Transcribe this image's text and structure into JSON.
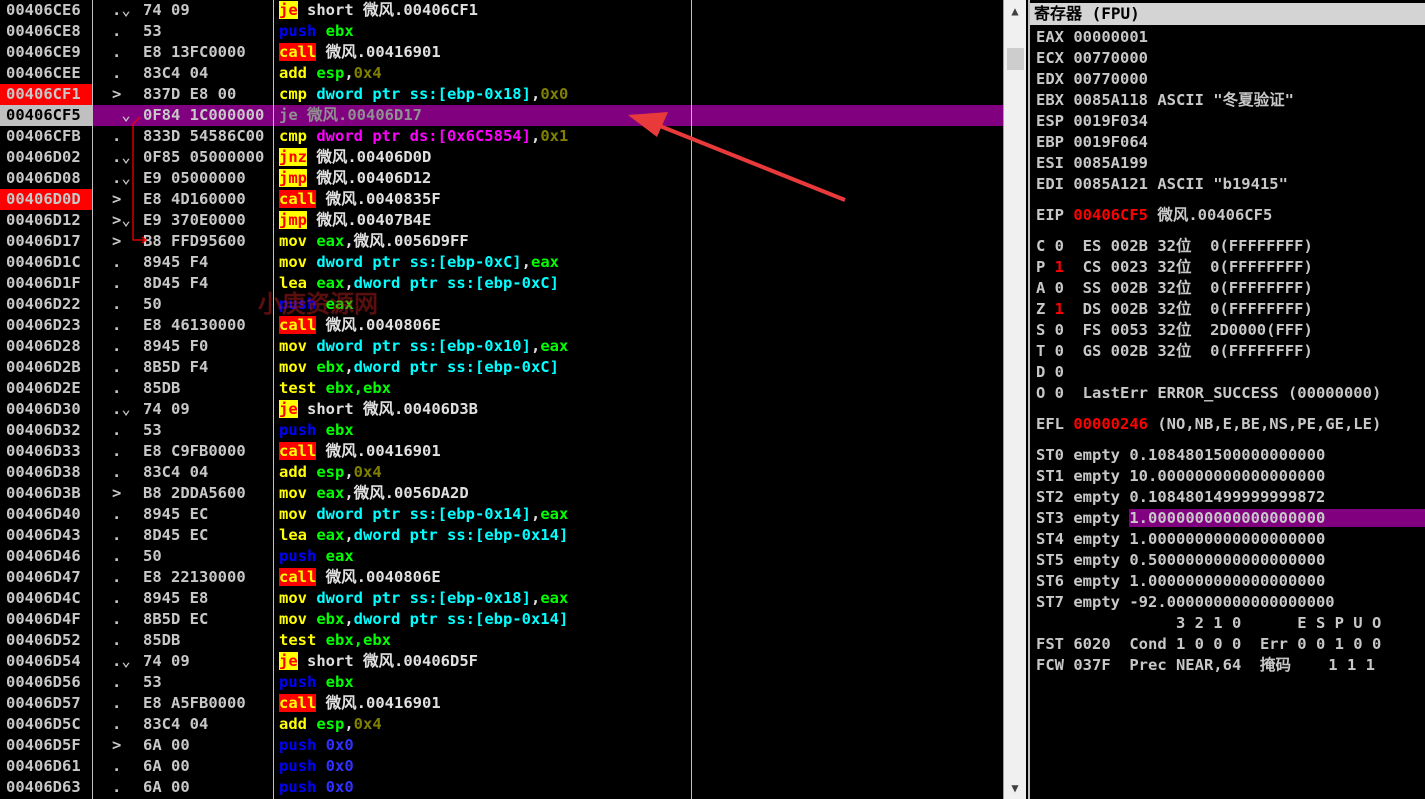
{
  "disasm": {
    "rows": [
      {
        "addr": "00406CE6",
        "mark": ".⌄",
        "hex": "74 09",
        "dis": [
          [
            "jx",
            "je"
          ],
          [
            "tx",
            " short 微风.00406CF1"
          ]
        ]
      },
      {
        "addr": "00406CE8",
        "mark": ".",
        "hex": "53",
        "dis": [
          [
            "ps",
            "push "
          ],
          [
            "rg",
            "ebx"
          ]
        ]
      },
      {
        "addr": "00406CE9",
        "mark": ".",
        "hex": "E8 13FC0000",
        "dis": [
          [
            "cl",
            "call"
          ],
          [
            "tx",
            " 微风.00416901"
          ]
        ]
      },
      {
        "addr": "00406CEE",
        "mark": ".",
        "hex": "83C4 04",
        "dis": [
          [
            "mn",
            "add "
          ],
          [
            "rg",
            "esp"
          ],
          [
            "tx",
            ","
          ],
          [
            "im",
            "0x4"
          ]
        ]
      },
      {
        "addr": "00406CF1",
        "addr_style": "red",
        "mark": ">",
        "hex": "837D E8 00",
        "dis": [
          [
            "mn",
            "cmp "
          ],
          [
            "mm",
            "dword ptr ss:[ebp-0x18]"
          ],
          [
            "tx",
            ","
          ],
          [
            "im",
            "0x0"
          ]
        ]
      },
      {
        "addr": "00406CF5",
        "addr_style": "gray",
        "selected": true,
        "mark": " ⌄",
        "hex": "0F84 1C000000",
        "dis": [
          [
            "gr",
            "je 微风.00406D17"
          ]
        ]
      },
      {
        "addr": "00406CFB",
        "mark": ".",
        "hex": "833D 54586C00",
        "dis": [
          [
            "mn",
            "cmp "
          ],
          [
            "md",
            "dword ptr ds:[0x6C5854]"
          ],
          [
            "tx",
            ","
          ],
          [
            "im",
            "0x1"
          ]
        ]
      },
      {
        "addr": "00406D02",
        "mark": ".⌄",
        "hex": "0F85 05000000",
        "dis": [
          [
            "jx",
            "jnz"
          ],
          [
            "tx",
            " 微风.00406D0D"
          ]
        ]
      },
      {
        "addr": "00406D08",
        "mark": ".⌄",
        "hex": "E9 05000000",
        "dis": [
          [
            "jx",
            "jmp"
          ],
          [
            "tx",
            " 微风.00406D12"
          ]
        ]
      },
      {
        "addr": "00406D0D",
        "addr_style": "red",
        "mark": ">",
        "hex": "E8 4D160000",
        "dis": [
          [
            "cl",
            "call"
          ],
          [
            "tx",
            " 微风.0040835F"
          ]
        ]
      },
      {
        "addr": "00406D12",
        "mark": ">⌄",
        "hex": "E9 370E0000",
        "dis": [
          [
            "jx",
            "jmp"
          ],
          [
            "tx",
            " 微风.00407B4E"
          ]
        ]
      },
      {
        "addr": "00406D17",
        "mark": ">",
        "hex": "B8 FFD95600",
        "dis": [
          [
            "mn",
            "mov "
          ],
          [
            "rg",
            "eax"
          ],
          [
            "tx",
            ",微风.0056D9FF"
          ]
        ]
      },
      {
        "addr": "00406D1C",
        "mark": ".",
        "hex": "8945 F4",
        "dis": [
          [
            "mn",
            "mov "
          ],
          [
            "mm",
            "dword ptr ss:[ebp-0xC]"
          ],
          [
            "tx",
            ","
          ],
          [
            "rg",
            "eax"
          ]
        ]
      },
      {
        "addr": "00406D1F",
        "mark": ".",
        "hex": "8D45 F4",
        "dis": [
          [
            "mn",
            "lea "
          ],
          [
            "rg",
            "eax"
          ],
          [
            "tx",
            ","
          ],
          [
            "mm",
            "dword ptr ss:[ebp-0xC]"
          ]
        ]
      },
      {
        "addr": "00406D22",
        "mark": ".",
        "hex": "50",
        "dis": [
          [
            "ps",
            "push "
          ],
          [
            "rg",
            "eax"
          ]
        ]
      },
      {
        "addr": "00406D23",
        "mark": ".",
        "hex": "E8 46130000",
        "dis": [
          [
            "cl",
            "call"
          ],
          [
            "tx",
            " 微风.0040806E"
          ]
        ]
      },
      {
        "addr": "00406D28",
        "mark": ".",
        "hex": "8945 F0",
        "dis": [
          [
            "mn",
            "mov "
          ],
          [
            "mm",
            "dword ptr ss:[ebp-0x10]"
          ],
          [
            "tx",
            ","
          ],
          [
            "rg",
            "eax"
          ]
        ]
      },
      {
        "addr": "00406D2B",
        "mark": ".",
        "hex": "8B5D F4",
        "dis": [
          [
            "mn",
            "mov "
          ],
          [
            "rg",
            "ebx"
          ],
          [
            "tx",
            ","
          ],
          [
            "mm",
            "dword ptr ss:[ebp-0xC]"
          ]
        ]
      },
      {
        "addr": "00406D2E",
        "mark": ".",
        "hex": "85DB",
        "dis": [
          [
            "mn",
            "test "
          ],
          [
            "rg",
            "ebx,ebx"
          ]
        ]
      },
      {
        "addr": "00406D30",
        "mark": ".⌄",
        "hex": "74 09",
        "dis": [
          [
            "jx",
            "je"
          ],
          [
            "tx",
            " short 微风.00406D3B"
          ]
        ]
      },
      {
        "addr": "00406D32",
        "mark": ".",
        "hex": "53",
        "dis": [
          [
            "ps",
            "push "
          ],
          [
            "rg",
            "ebx"
          ]
        ]
      },
      {
        "addr": "00406D33",
        "mark": ".",
        "hex": "E8 C9FB0000",
        "dis": [
          [
            "cl",
            "call"
          ],
          [
            "tx",
            " 微风.00416901"
          ]
        ]
      },
      {
        "addr": "00406D38",
        "mark": ".",
        "hex": "83C4 04",
        "dis": [
          [
            "mn",
            "add "
          ],
          [
            "rg",
            "esp"
          ],
          [
            "tx",
            ","
          ],
          [
            "im",
            "0x4"
          ]
        ]
      },
      {
        "addr": "00406D3B",
        "mark": ">",
        "hex": "B8 2DDA5600",
        "dis": [
          [
            "mn",
            "mov "
          ],
          [
            "rg",
            "eax"
          ],
          [
            "tx",
            ",微风.0056DA2D"
          ]
        ]
      },
      {
        "addr": "00406D40",
        "mark": ".",
        "hex": "8945 EC",
        "dis": [
          [
            "mn",
            "mov "
          ],
          [
            "mm",
            "dword ptr ss:[ebp-0x14]"
          ],
          [
            "tx",
            ","
          ],
          [
            "rg",
            "eax"
          ]
        ]
      },
      {
        "addr": "00406D43",
        "mark": ".",
        "hex": "8D45 EC",
        "dis": [
          [
            "mn",
            "lea "
          ],
          [
            "rg",
            "eax"
          ],
          [
            "tx",
            ","
          ],
          [
            "mm",
            "dword ptr ss:[ebp-0x14]"
          ]
        ]
      },
      {
        "addr": "00406D46",
        "mark": ".",
        "hex": "50",
        "dis": [
          [
            "ps",
            "push "
          ],
          [
            "rg",
            "eax"
          ]
        ]
      },
      {
        "addr": "00406D47",
        "mark": ".",
        "hex": "E8 22130000",
        "dis": [
          [
            "cl",
            "call"
          ],
          [
            "tx",
            " 微风.0040806E"
          ]
        ]
      },
      {
        "addr": "00406D4C",
        "mark": ".",
        "hex": "8945 E8",
        "dis": [
          [
            "mn",
            "mov "
          ],
          [
            "mm",
            "dword ptr ss:[ebp-0x18]"
          ],
          [
            "tx",
            ","
          ],
          [
            "rg",
            "eax"
          ]
        ]
      },
      {
        "addr": "00406D4F",
        "mark": ".",
        "hex": "8B5D EC",
        "dis": [
          [
            "mn",
            "mov "
          ],
          [
            "rg",
            "ebx"
          ],
          [
            "tx",
            ","
          ],
          [
            "mm",
            "dword ptr ss:[ebp-0x14]"
          ]
        ]
      },
      {
        "addr": "00406D52",
        "mark": ".",
        "hex": "85DB",
        "dis": [
          [
            "mn",
            "test "
          ],
          [
            "rg",
            "ebx,ebx"
          ]
        ]
      },
      {
        "addr": "00406D54",
        "mark": ".⌄",
        "hex": "74 09",
        "dis": [
          [
            "jx",
            "je"
          ],
          [
            "tx",
            " short 微风.00406D5F"
          ]
        ]
      },
      {
        "addr": "00406D56",
        "mark": ".",
        "hex": "53",
        "dis": [
          [
            "ps",
            "push "
          ],
          [
            "rg",
            "ebx"
          ]
        ]
      },
      {
        "addr": "00406D57",
        "mark": ".",
        "hex": "E8 A5FB0000",
        "dis": [
          [
            "cl",
            "call"
          ],
          [
            "tx",
            " 微风.00416901"
          ]
        ]
      },
      {
        "addr": "00406D5C",
        "mark": ".",
        "hex": "83C4 04",
        "dis": [
          [
            "mn",
            "add "
          ],
          [
            "rg",
            "esp"
          ],
          [
            "tx",
            ","
          ],
          [
            "im",
            "0x4"
          ]
        ]
      },
      {
        "addr": "00406D5F",
        "mark": ">",
        "hex": "6A 00",
        "dis": [
          [
            "ps",
            "push "
          ],
          [
            "pz",
            "0x0"
          ]
        ]
      },
      {
        "addr": "00406D61",
        "mark": ".",
        "hex": "6A 00",
        "dis": [
          [
            "ps",
            "push "
          ],
          [
            "pz",
            "0x0"
          ]
        ]
      },
      {
        "addr": "00406D63",
        "mark": ".",
        "hex": "6A 00",
        "dis": [
          [
            "ps",
            "push "
          ],
          [
            "pz",
            "0x0"
          ]
        ]
      }
    ]
  },
  "watermark": "小庚资源网",
  "scrollbar": {
    "up": "▲",
    "down": "▼"
  },
  "registers": {
    "title": "寄存器 (FPU)",
    "lines": [
      {
        "segs": [
          [
            "",
            "EAX 00000001"
          ]
        ]
      },
      {
        "segs": [
          [
            "",
            "ECX 00770000"
          ]
        ]
      },
      {
        "segs": [
          [
            "",
            "EDX 00770000"
          ]
        ]
      },
      {
        "segs": [
          [
            "",
            "EBX 0085A118 ASCII \"冬夏验证\""
          ]
        ]
      },
      {
        "segs": [
          [
            "",
            "ESP 0019F034"
          ]
        ]
      },
      {
        "segs": [
          [
            "",
            "EBP 0019F064"
          ]
        ]
      },
      {
        "segs": [
          [
            "",
            "ESI 0085A199"
          ]
        ]
      },
      {
        "segs": [
          [
            "",
            "EDI 0085A121 ASCII \"b19415\""
          ]
        ]
      },
      {
        "gap": true,
        "segs": [
          [
            "",
            "EIP "
          ],
          [
            "rd",
            "00406CF5"
          ],
          [
            "",
            " 微风.00406CF5"
          ]
        ]
      },
      {
        "gap": true,
        "segs": [
          [
            "",
            "C 0  ES 002B 32位  0(FFFFFFFF)"
          ]
        ]
      },
      {
        "segs": [
          [
            "",
            "P "
          ],
          [
            "rd",
            "1"
          ],
          [
            "",
            "  CS 0023 32位  0(FFFFFFFF)"
          ]
        ]
      },
      {
        "segs": [
          [
            "",
            "A 0  SS 002B 32位  0(FFFFFFFF)"
          ]
        ]
      },
      {
        "segs": [
          [
            "",
            "Z "
          ],
          [
            "rd",
            "1"
          ],
          [
            "",
            "  DS 002B 32位  0(FFFFFFFF)"
          ]
        ]
      },
      {
        "segs": [
          [
            "",
            "S 0  FS 0053 32位  2D0000(FFF)"
          ]
        ]
      },
      {
        "segs": [
          [
            "",
            "T 0  GS 002B 32位  0(FFFFFFFF)"
          ]
        ]
      },
      {
        "segs": [
          [
            "",
            "D 0"
          ]
        ]
      },
      {
        "segs": [
          [
            "",
            "O 0  LastErr ERROR_SUCCESS (00000000)"
          ]
        ]
      },
      {
        "gap": true,
        "segs": [
          [
            "",
            "EFL "
          ],
          [
            "rd",
            "00000246"
          ],
          [
            "",
            " (NO,NB,E,BE,NS,PE,GE,LE)"
          ]
        ]
      },
      {
        "gap": true,
        "segs": [
          [
            "",
            "ST0 empty 0.1084801500000000000"
          ]
        ]
      },
      {
        "segs": [
          [
            "",
            "ST1 empty 10.000000000000000000"
          ]
        ]
      },
      {
        "segs": [
          [
            "",
            "ST2 empty 0.1084801499999999872"
          ]
        ]
      },
      {
        "segs": [
          [
            "",
            "ST3 empty "
          ],
          [
            "hl",
            "1.0000000000000000000                 "
          ]
        ]
      },
      {
        "segs": [
          [
            "",
            "ST4 empty 1.0000000000000000000"
          ]
        ]
      },
      {
        "segs": [
          [
            "",
            "ST5 empty 0.5000000000000000000"
          ]
        ]
      },
      {
        "segs": [
          [
            "",
            "ST6 empty 1.0000000000000000000"
          ]
        ]
      },
      {
        "segs": [
          [
            "",
            "ST7 empty -92.000000000000000000"
          ]
        ]
      },
      {
        "segs": [
          [
            "",
            "               3 2 1 0      E S P U O"
          ]
        ]
      },
      {
        "segs": [
          [
            "",
            "FST 6020  Cond 1 0 0 0  Err 0 0 1 0 0"
          ]
        ]
      },
      {
        "segs": [
          [
            "",
            "FCW 037F  Prec NEAR,64  掩码    1 1 1"
          ]
        ]
      }
    ]
  },
  "colors": {
    "selection": "#800080",
    "breakpoint": "#ff0000",
    "annotation_arrow": "#e83a3a"
  }
}
